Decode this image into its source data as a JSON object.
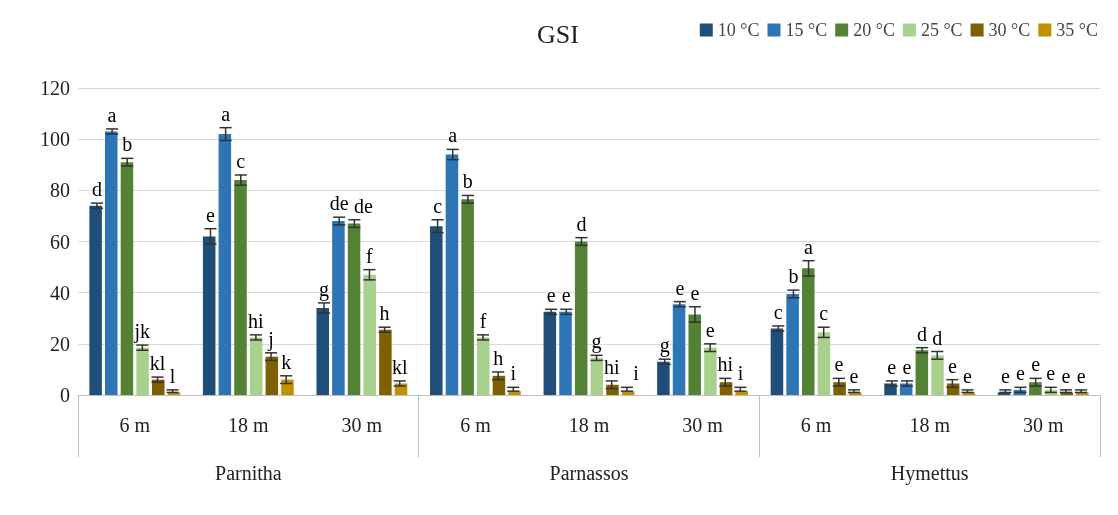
{
  "chart_data": {
    "type": "bar",
    "title": "GSI",
    "categories": [
      "6 m",
      "18 m",
      "30 m",
      "6 m",
      "18 m",
      "30 m",
      "6 m",
      "18 m",
      "30 m"
    ],
    "annotations": [
      "Parnitha",
      "Parnassos",
      "Hymettus"
    ],
    "series": [
      {
        "name": "10 °C",
        "color": "#1f4e79",
        "values": [
          74,
          62,
          34,
          66,
          32.5,
          13,
          26,
          4.5,
          1
        ],
        "errors": [
          1,
          3,
          2,
          2.5,
          1,
          1,
          1,
          1,
          [
            1,
            2
          ]
        ],
        "value_labels": [
          "d",
          "e",
          "g",
          "c",
          "e",
          "g",
          "c",
          "e",
          "e"
        ]
      },
      {
        "name": "15 °C",
        "color": "#2e75b6",
        "values": [
          103,
          102,
          68,
          94,
          32.5,
          35.5,
          39.5,
          4.5,
          2
        ],
        "errors": [
          1,
          2.5,
          1.5,
          2,
          1,
          1,
          1.5,
          1,
          1
        ],
        "value_labels": [
          "a",
          "a",
          "de",
          "a",
          "e",
          "e",
          "b",
          "e",
          "e"
        ]
      },
      {
        "name": "20 °C",
        "color": "#548235",
        "values": [
          91,
          84,
          67,
          76.5,
          60,
          31.5,
          49.5,
          17.5,
          5
        ],
        "errors": [
          1.5,
          2,
          1.5,
          1.5,
          1.5,
          3,
          3,
          1,
          1.5
        ],
        "value_labels": [
          "b",
          "c",
          "de",
          "b",
          "d",
          "e",
          "a",
          "d",
          "e"
        ]
      },
      {
        "name": "25 °C",
        "color": "#a9d18e",
        "values": [
          18.5,
          22.5,
          47,
          22.5,
          14.5,
          18.5,
          24.5,
          15.5,
          2
        ],
        "errors": [
          1,
          1,
          2,
          1,
          1,
          1.5,
          2,
          1.5,
          1
        ],
        "value_labels": [
          "jk",
          "hi",
          "f",
          "f",
          "g",
          "e",
          "c",
          "d",
          "e"
        ]
      },
      {
        "name": "30 °C",
        "color": "#7f6000",
        "values": [
          6,
          15,
          25.5,
          7.5,
          4,
          5,
          5,
          4.5,
          1
        ],
        "errors": [
          1,
          1.5,
          1,
          1.5,
          1.5,
          1.5,
          1.5,
          1.5,
          [
            1,
            2
          ]
        ],
        "value_labels": [
          "kl",
          "j",
          "h",
          "h",
          "hi",
          "hi",
          "e",
          "e",
          "e"
        ]
      },
      {
        "name": "35 °C",
        "color": "#bf9000",
        "values": [
          1,
          6,
          4.5,
          1.5,
          1.5,
          1.5,
          1,
          1,
          1
        ],
        "errors": [
          [
            1,
            2
          ],
          1.5,
          1,
          [
            1.5,
            3
          ],
          [
            1.5,
            3
          ],
          [
            1.5,
            3
          ],
          [
            1,
            2
          ],
          [
            1,
            2
          ],
          [
            1,
            2
          ]
        ],
        "value_labels": [
          "l",
          "k",
          "kl",
          "i",
          "i",
          "i",
          "e",
          "e",
          "e"
        ]
      }
    ],
    "ylim": [
      0,
      120
    ],
    "yticks": [
      0,
      20,
      40,
      60,
      80,
      100,
      120
    ],
    "grid": "y",
    "legend": "top right"
  }
}
